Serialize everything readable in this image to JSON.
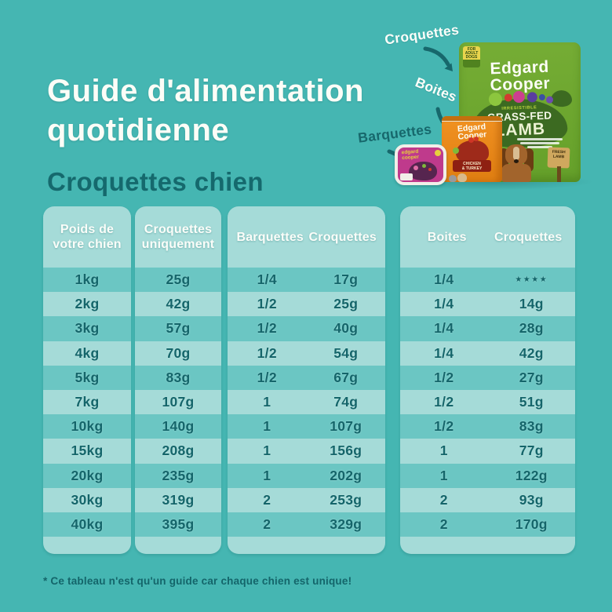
{
  "page": {
    "title_line1": "Guide d'alimentation",
    "title_line2": "quotidienne",
    "subtitle": "Croquettes chien",
    "footnote": "* Ce tableau n'est qu'un guide car chaque chien est unique!"
  },
  "products": {
    "label_croquettes": "Croquettes",
    "label_boites": "Boites",
    "label_barquettes": "Barquettes",
    "bag": {
      "tag_text": "FOR ADULT DOGS",
      "brand_top": "Edgard",
      "brand_bottom": "Cooper",
      "claim": "IRRESISTIBLE",
      "flavor_top": "GRASS-FED",
      "flavor_bottom": "LAMB",
      "sign_text": "FRESH LAMB"
    },
    "can": {
      "brand_top": "Edgard",
      "brand_bottom": "Cooper",
      "flavor_line1": "CHICKEN",
      "flavor_line2": "& TURKEY"
    },
    "tray": {
      "brand": "edgard cooper"
    }
  },
  "table": {
    "groups": [
      {
        "headers": [
          "Poids de votre chien"
        ],
        "rows": [
          [
            "1kg"
          ],
          [
            "2kg"
          ],
          [
            "3kg"
          ],
          [
            "4kg"
          ],
          [
            "5kg"
          ],
          [
            "7kg"
          ],
          [
            "10kg"
          ],
          [
            "15kg"
          ],
          [
            "20kg"
          ],
          [
            "30kg"
          ],
          [
            "40kg"
          ]
        ]
      },
      {
        "headers": [
          "Croquettes uniquement"
        ],
        "rows": [
          [
            "25g"
          ],
          [
            "42g"
          ],
          [
            "57g"
          ],
          [
            "70g"
          ],
          [
            "83g"
          ],
          [
            "107g"
          ],
          [
            "140g"
          ],
          [
            "208g"
          ],
          [
            "235g"
          ],
          [
            "319g"
          ],
          [
            "395g"
          ]
        ]
      },
      {
        "headers": [
          "Barquettes",
          "Croquettes"
        ],
        "rows": [
          [
            "1/4",
            "17g"
          ],
          [
            "1/2",
            "25g"
          ],
          [
            "1/2",
            "40g"
          ],
          [
            "1/2",
            "54g"
          ],
          [
            "1/2",
            "67g"
          ],
          [
            "1",
            "74g"
          ],
          [
            "1",
            "107g"
          ],
          [
            "1",
            "156g"
          ],
          [
            "1",
            "202g"
          ],
          [
            "2",
            "253g"
          ],
          [
            "2",
            "329g"
          ]
        ]
      },
      {
        "headers": [
          "Boites",
          "Croquettes"
        ],
        "rows": [
          [
            "1/4",
            "★★★★"
          ],
          [
            "1/4",
            "14g"
          ],
          [
            "1/4",
            "28g"
          ],
          [
            "1/4",
            "42g"
          ],
          [
            "1/2",
            "27g"
          ],
          [
            "1/2",
            "51g"
          ],
          [
            "1/2",
            "83g"
          ],
          [
            "1",
            "77g"
          ],
          [
            "1",
            "122g"
          ],
          [
            "2",
            "93g"
          ],
          [
            "2",
            "170g"
          ]
        ]
      }
    ]
  },
  "colors": {
    "background": "#45b6b2",
    "panel_light": "#a5dbd8",
    "row_stripe": "#6bc6c3",
    "text_dark": "#15696d",
    "text_white": "#fcfdf7",
    "bag_green": "#6ca72f",
    "can_orange": "#ec8d1e",
    "tray_magenta": "#bf3a8c",
    "arrow": "#17686c"
  }
}
